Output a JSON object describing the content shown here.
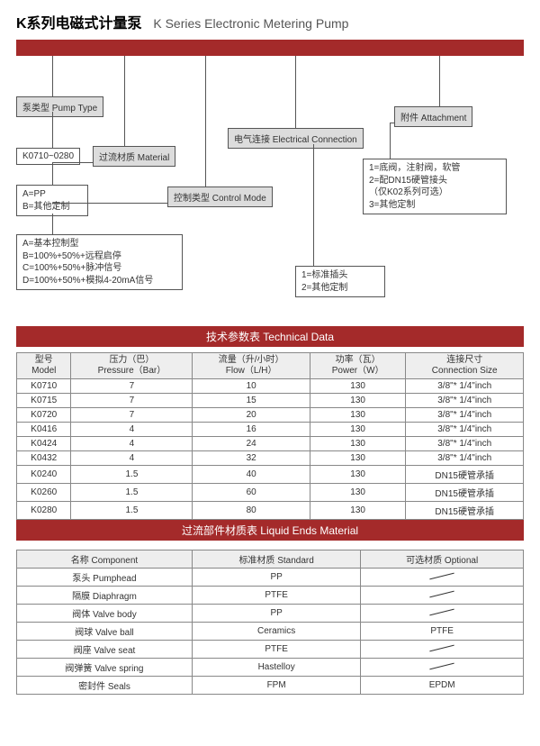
{
  "title": {
    "cn": "K系列电磁式计量泵",
    "en": "K Series Electronic Metering Pump"
  },
  "headerBar": {
    "color": "#a42a2a"
  },
  "diagram": {
    "pumpType": {
      "label": "泵类型 Pump Type",
      "value": "K0710~0280"
    },
    "material": {
      "label": "过流材质 Material",
      "value": "A=PP\nB=其他定制"
    },
    "controlMode": {
      "label": "控制类型 Control Mode",
      "value": "A=基本控制型\nB=100%+50%+远程启停\nC=100%+50%+脉冲信号\nD=100%+50%+模拟4-20mA信号"
    },
    "electrical": {
      "label": "电气连接 Electrical Connection",
      "value": "1=标准插头\n2=其他定制"
    },
    "attachment": {
      "label": "附件 Attachment",
      "value": "1=底阀，注射阀，软管\n2=配DN15硬管接头\n      （仅K02系列可选）\n3=其他定制"
    }
  },
  "techTable": {
    "title": "技术参数表  Technical Data",
    "columns": [
      {
        "cn": "型号",
        "en": "Model"
      },
      {
        "cn": "压力（巴）",
        "en": "Pressure（Bar）"
      },
      {
        "cn": "流量（升/小时）",
        "en": "Flow（L/H）"
      },
      {
        "cn": "功率（瓦）",
        "en": "Power（W）"
      },
      {
        "cn": "连接尺寸",
        "en": "Connection Size"
      }
    ],
    "rows": [
      [
        "K0710",
        "7",
        "10",
        "130",
        "3/8\"* 1/4\"inch"
      ],
      [
        "K0715",
        "7",
        "15",
        "130",
        "3/8\"* 1/4\"inch"
      ],
      [
        "K0720",
        "7",
        "20",
        "130",
        "3/8\"* 1/4\"inch"
      ],
      [
        "K0416",
        "4",
        "16",
        "130",
        "3/8\"* 1/4\"inch"
      ],
      [
        "K0424",
        "4",
        "24",
        "130",
        "3/8\"* 1/4\"inch"
      ],
      [
        "K0432",
        "4",
        "32",
        "130",
        "3/8\"* 1/4\"inch"
      ],
      [
        "K0240",
        "1.5",
        "40",
        "130",
        "DN15硬管承插"
      ],
      [
        "K0260",
        "1.5",
        "60",
        "130",
        "DN15硬管承插"
      ],
      [
        "K0280",
        "1.5",
        "80",
        "130",
        "DN15硬管承插"
      ]
    ]
  },
  "liquidTable": {
    "title": "过流部件材质表 Liquid Ends Material",
    "columns": [
      "名称 Component",
      "标准材质 Standard",
      "可选材质 Optional"
    ],
    "rows": [
      [
        "泵头 Pumphead",
        "PP",
        "—"
      ],
      [
        "隔膜 Diaphragm",
        "PTFE",
        "—"
      ],
      [
        "阀体 Valve body",
        "PP",
        "—"
      ],
      [
        "阀球 Valve ball",
        "Ceramics",
        "PTFE"
      ],
      [
        "阀座 Valve seat",
        "PTFE",
        "—"
      ],
      [
        "阀弹簧 Valve spring",
        "Hastelloy",
        "—"
      ],
      [
        "密封件 Seals",
        "FPM",
        "EPDM"
      ]
    ]
  }
}
